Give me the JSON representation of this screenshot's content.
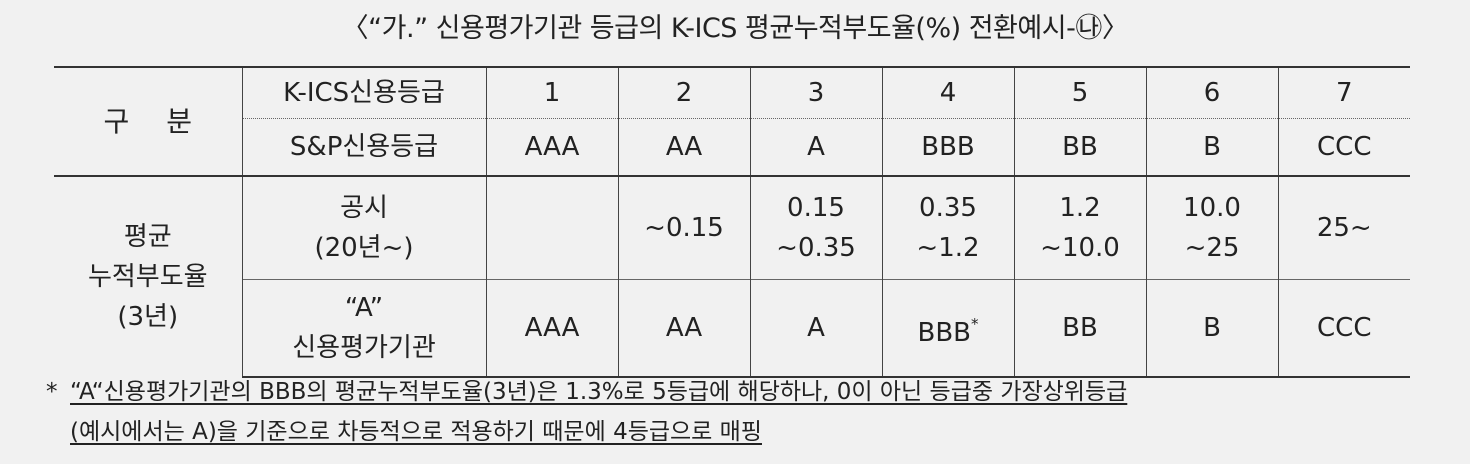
{
  "title": "〈“가.” 신용평가기관 등급의 K-ICS 평균누적부도율(%) 전환예시-㉯〉",
  "header": {
    "gubun": "구 분",
    "kics_label": "K-ICS신용등급",
    "sp_label": "S&P신용등급",
    "kics_grades": [
      "1",
      "2",
      "3",
      "4",
      "5",
      "6",
      "7"
    ],
    "sp_grades": [
      "AAA",
      "AA",
      "A",
      "BBB",
      "BB",
      "B",
      "CCC"
    ]
  },
  "rows": {
    "group_label": [
      "평균",
      "누적부도율",
      "(3년)"
    ],
    "disclosed": {
      "label": [
        "공시",
        "(20년~)"
      ],
      "values": [
        [
          ""
        ],
        [
          "~0.15"
        ],
        [
          "0.15",
          "~0.35"
        ],
        [
          "0.35",
          "~1.2"
        ],
        [
          "1.2",
          "~10.0"
        ],
        [
          "10.0",
          "~25"
        ],
        [
          "25~"
        ]
      ]
    },
    "agency_a": {
      "label": [
        "“A”",
        "신용평가기관"
      ],
      "values": [
        "AAA",
        "AA",
        "A",
        "BBB",
        "BB",
        "B",
        "CCC"
      ],
      "bbb_mark": "*"
    }
  },
  "footnote": {
    "star": "*",
    "line1": "“A“신용평가기관의 BBB의 평균누적부도율(3년)은 1.3%로 5등급에 해당하나, 0이 아닌 등급중 가장상위등급",
    "line2": "(예시에서는 A)을 기준으로 차등적으로 적용하기 때문에 4등급으로 매핑"
  }
}
